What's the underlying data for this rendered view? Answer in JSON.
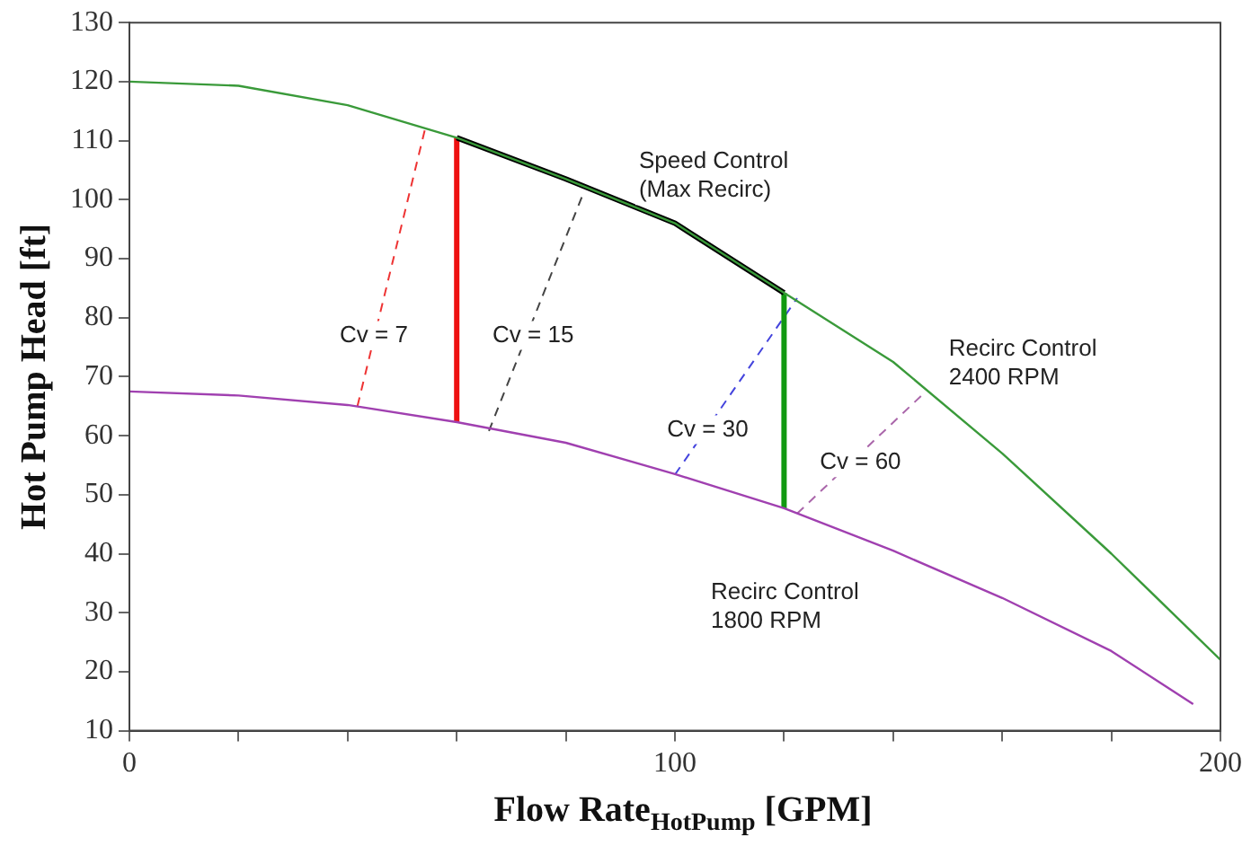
{
  "chart_data": {
    "type": "line",
    "xlabel": "Flow Rate$_{HotPump}$ [GPM]",
    "ylabel": "Hot Pump Head [ft]",
    "xlim": [
      0,
      200
    ],
    "ylim": [
      10,
      130
    ],
    "xticks": [
      0,
      {
        "value": 20,
        "label": null
      },
      {
        "value": 40,
        "label": null
      },
      {
        "value": 60,
        "label": null
      },
      {
        "value": 80,
        "label": null
      },
      100,
      {
        "value": 120,
        "label": null
      },
      {
        "value": 140,
        "label": null
      },
      {
        "value": 160,
        "label": null
      },
      {
        "value": 180,
        "label": null
      },
      200
    ],
    "yticks": [
      10,
      20,
      30,
      40,
      50,
      60,
      70,
      80,
      90,
      100,
      110,
      120,
      130
    ],
    "grid": false,
    "legend": false,
    "marker": "none",
    "series": [
      {
        "color": "#3a9a3a",
        "line_style": "solid",
        "x": [
          0,
          20,
          40,
          60,
          80,
          100,
          120,
          140,
          160,
          180,
          200
        ],
        "values": [
          120,
          119.3,
          116,
          110.5,
          103.5,
          96,
          84.2,
          72.5,
          57,
          40,
          22
        ]
      },
      {
        "color": "#a040b0",
        "line_style": "solid",
        "x": [
          0,
          20,
          40,
          60,
          80,
          100,
          120,
          140,
          160,
          180,
          195
        ],
        "values": [
          67.5,
          66.8,
          65.2,
          62.3,
          58.8,
          53.5,
          47.7,
          40.5,
          32.5,
          23.5,
          14.5
        ]
      },
      {
        "color": "#000000",
        "line_style": "solid",
        "x": [
          60,
          80,
          100,
          120
        ],
        "values": [
          110.5,
          103.5,
          96,
          84.2
        ]
      },
      {
        "color": "#ee1111",
        "line_style": "solid",
        "x": [
          60,
          60
        ],
        "values": [
          62.3,
          110.5
        ]
      },
      {
        "color": "#119911",
        "line_style": "solid",
        "x": [
          120,
          120
        ],
        "values": [
          47.7,
          84.2
        ]
      },
      {
        "color": "#ee3333",
        "line_style": "dashed",
        "x": [
          41.8,
          54.2
        ],
        "values": [
          65,
          112
        ]
      },
      {
        "color": "#444444",
        "line_style": "dashed",
        "x": [
          65.9,
          83.3
        ],
        "values": [
          60.8,
          101.3
        ]
      },
      {
        "color": "#4444dd",
        "line_style": "dashed",
        "x": [
          100,
          122.4
        ],
        "values": [
          53.4,
          83.3
        ]
      },
      {
        "color": "#aa66aa",
        "line_style": "dashed",
        "x": [
          122.4,
          145.2
        ],
        "values": [
          46.8,
          66.8
        ]
      }
    ],
    "annotations": [
      {
        "text": "Cv = 7",
        "x": 44.8,
        "y": 77
      },
      {
        "text": "Cv = 15",
        "x": 74,
        "y": 77
      },
      {
        "text": "Cv = 30",
        "x": 106,
        "y": 61
      },
      {
        "text": "Cv = 60",
        "x": 134,
        "y": 55.4
      },
      "Speed Control\n(Max Recirc)",
      "Recirc Control\n2400 RPM",
      "Recirc Control\n1800 RPM"
    ]
  }
}
